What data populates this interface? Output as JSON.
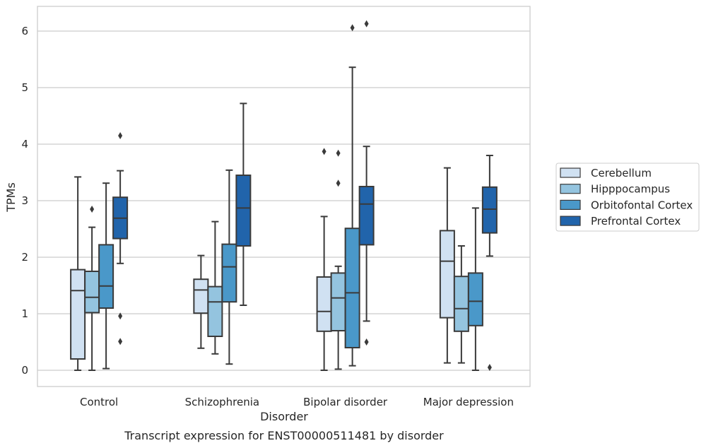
{
  "caption": "Transcript expression for ENST00000511481 by disorder",
  "chart_data": {
    "type": "boxplot",
    "title": "",
    "xlabel": "Disorder",
    "ylabel": "TPMs",
    "ylim": [
      -0.3,
      6.45
    ],
    "yticks": [
      0,
      1,
      2,
      3,
      4,
      5,
      6
    ],
    "grid": "horizontal",
    "legend_position": "right",
    "categories": [
      "Control",
      "Schizophrenia",
      "Bipolar disorder",
      "Major depression"
    ],
    "series": [
      {
        "name": "Cerebellum",
        "color": "#d0e1f2",
        "boxes": [
          {
            "whislo": 0.0,
            "q1": 0.2,
            "med": 1.41,
            "q3": 1.78,
            "whishi": 3.42,
            "fliers": []
          },
          {
            "whislo": 0.39,
            "q1": 1.01,
            "med": 1.42,
            "q3": 1.61,
            "whishi": 2.03,
            "fliers": []
          },
          {
            "whislo": 0.0,
            "q1": 0.69,
            "med": 1.04,
            "q3": 1.65,
            "whishi": 2.72,
            "fliers": [
              3.87
            ]
          },
          {
            "whislo": 0.13,
            "q1": 0.93,
            "med": 1.93,
            "q3": 2.47,
            "whishi": 3.58,
            "fliers": []
          }
        ]
      },
      {
        "name": "Hipppocampus",
        "color": "#94c4df",
        "boxes": [
          {
            "whislo": 0.0,
            "q1": 1.02,
            "med": 1.29,
            "q3": 1.75,
            "whishi": 2.53,
            "fliers": [
              2.85
            ]
          },
          {
            "whislo": 0.29,
            "q1": 0.6,
            "med": 1.21,
            "q3": 1.48,
            "whishi": 2.63,
            "fliers": []
          },
          {
            "whislo": 0.02,
            "q1": 0.7,
            "med": 1.28,
            "q3": 1.72,
            "whishi": 1.84,
            "fliers": [
              3.31,
              3.84
            ]
          },
          {
            "whislo": 0.13,
            "q1": 0.69,
            "med": 1.09,
            "q3": 1.66,
            "whishi": 2.2,
            "fliers": []
          }
        ]
      },
      {
        "name": "Orbitofontal Cortex",
        "color": "#4a98c9",
        "boxes": [
          {
            "whislo": 0.03,
            "q1": 1.1,
            "med": 1.49,
            "q3": 2.22,
            "whishi": 3.31,
            "fliers": []
          },
          {
            "whislo": 0.11,
            "q1": 1.21,
            "med": 1.83,
            "q3": 2.23,
            "whishi": 3.54,
            "fliers": []
          },
          {
            "whislo": 0.08,
            "q1": 0.4,
            "med": 1.37,
            "q3": 2.51,
            "whishi": 5.36,
            "fliers": [
              6.06
            ]
          },
          {
            "whislo": 0.0,
            "q1": 0.79,
            "med": 1.22,
            "q3": 1.72,
            "whishi": 2.87,
            "fliers": []
          }
        ]
      },
      {
        "name": "Prefrontal Cortex",
        "color": "#2164ab",
        "boxes": [
          {
            "whislo": 1.89,
            "q1": 2.33,
            "med": 2.69,
            "q3": 3.06,
            "whishi": 3.53,
            "fliers": [
              4.15,
              0.96,
              0.51
            ]
          },
          {
            "whislo": 1.15,
            "q1": 2.2,
            "med": 2.87,
            "q3": 3.45,
            "whishi": 4.72,
            "fliers": []
          },
          {
            "whislo": 0.87,
            "q1": 2.22,
            "med": 2.94,
            "q3": 3.25,
            "whishi": 3.96,
            "fliers": [
              6.13,
              0.5
            ]
          },
          {
            "whislo": 2.02,
            "q1": 2.43,
            "med": 2.85,
            "q3": 3.24,
            "whishi": 3.8,
            "fliers": [
              0.05
            ]
          }
        ]
      }
    ]
  }
}
